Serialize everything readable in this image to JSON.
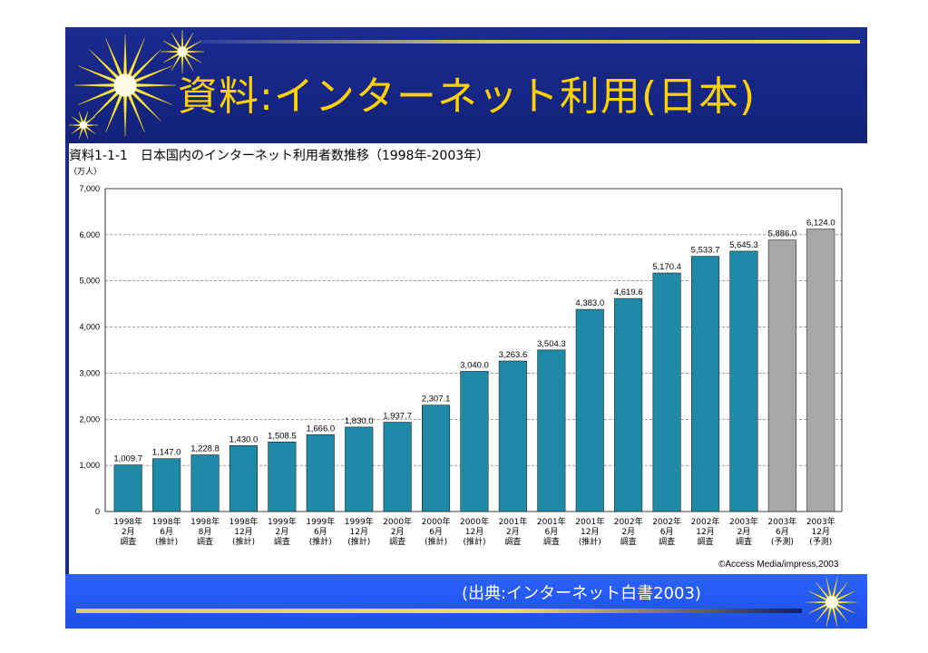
{
  "header": {
    "title": "資料:インターネット利用(日本)"
  },
  "chart_heading": "資料1-1-1　日本国内のインターネット利用者数推移（1998年-2003年）",
  "copyright": "©Access Media/impress,2003",
  "footer": {
    "source": "(出典:インターネット白書2003)"
  },
  "colors": {
    "survey_bar": "#1f8aa8",
    "forecast_bar": "#a8a8a8",
    "header_bg": "#1b2a8f",
    "title_color": "#ffd200",
    "footer_bg": "#2a62ff"
  },
  "chart_data": {
    "type": "bar",
    "title": "日本国内のインターネット利用者数推移（1998年-2003年）",
    "ylabel": "（万人）",
    "xlabel": "",
    "ylim": [
      0,
      7000
    ],
    "yticks": [
      "0",
      "1,000",
      "2,000",
      "3,000",
      "4,000",
      "5,000",
      "6,000",
      "7,000"
    ],
    "grid": true,
    "categories": [
      [
        "1998年",
        "2月",
        "調査"
      ],
      [
        "1998年",
        "6月",
        "(推計)"
      ],
      [
        "1998年",
        "8月",
        "調査"
      ],
      [
        "1998年",
        "12月",
        "(推計)"
      ],
      [
        "1999年",
        "2月",
        "調査"
      ],
      [
        "1999年",
        "6月",
        "(推計)"
      ],
      [
        "1999年",
        "12月",
        "(推計)"
      ],
      [
        "2000年",
        "2月",
        "調査"
      ],
      [
        "2000年",
        "6月",
        "(推計)"
      ],
      [
        "2000年",
        "12月",
        "(推計)"
      ],
      [
        "2001年",
        "2月",
        "調査"
      ],
      [
        "2001年",
        "6月",
        "調査"
      ],
      [
        "2001年",
        "12月",
        "(推計)"
      ],
      [
        "2002年",
        "2月",
        "調査"
      ],
      [
        "2002年",
        "6月",
        "調査"
      ],
      [
        "2002年",
        "12月",
        "調査"
      ],
      [
        "2003年",
        "2月",
        "調査"
      ],
      [
        "2003年",
        "6月",
        "(予測)"
      ],
      [
        "2003年",
        "12月",
        "(予測)"
      ]
    ],
    "values": [
      1009.7,
      1147.0,
      1228.8,
      1430.0,
      1508.5,
      1666.0,
      1830.0,
      1937.7,
      2307.1,
      3040.0,
      3263.6,
      3504.3,
      4383.0,
      4619.6,
      5170.4,
      5533.7,
      5645.3,
      5886.0,
      6124.0
    ],
    "value_labels": [
      "1,009.7",
      "1,147.0",
      "1,228.8",
      "1,430.0",
      "1,508.5",
      "1,666.0",
      "1,830.0",
      "1,937.7",
      "2,307.1",
      "3,040.0",
      "3,263.6",
      "3,504.3",
      "4,383.0",
      "4,619.6",
      "5,170.4",
      "5,533.7",
      "5,645.3",
      "5,886.0",
      "6,124.0"
    ],
    "kinds": [
      "survey",
      "survey",
      "survey",
      "survey",
      "survey",
      "survey",
      "survey",
      "survey",
      "survey",
      "survey",
      "survey",
      "survey",
      "survey",
      "survey",
      "survey",
      "survey",
      "survey",
      "forecast",
      "forecast"
    ]
  }
}
